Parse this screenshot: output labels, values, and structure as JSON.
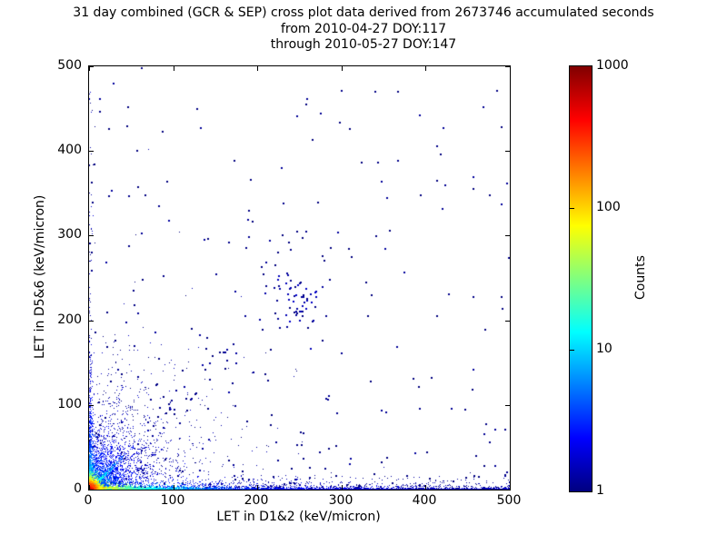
{
  "title": {
    "line1": "31 day combined (GCR & SEP) cross plot data derived from 2673746 accumulated seconds",
    "line2": "from 2010-04-27 DOY:117",
    "line3": "through 2010-05-27 DOY:147"
  },
  "chart_data": {
    "type": "scatter",
    "subtype": "2d-density-histogram",
    "title": "31 day combined (GCR & SEP) cross plot data derived from 2673746 accumulated seconds from 2010-04-27 DOY:117 through 2010-05-27 DOY:147",
    "xlabel": "LET in D1&2 (keV/micron)",
    "ylabel": "LET in D5&6 (keV/micron)",
    "xlim": [
      0,
      500
    ],
    "ylim": [
      0,
      500
    ],
    "xticks": [
      0,
      100,
      200,
      300,
      400,
      500
    ],
    "yticks": [
      0,
      100,
      200,
      300,
      400,
      500
    ],
    "grid": false,
    "legend": "none",
    "colorbar": {
      "label": "Counts",
      "scale": "log",
      "min": 1,
      "max": 1000,
      "ticks": [
        1,
        10,
        100,
        1000
      ],
      "colormap": "jet"
    },
    "stats": {
      "duration_days": 31,
      "sources": "GCR & SEP",
      "accumulated_seconds": 2673746,
      "start_date": "2010-04-27",
      "start_doy": 117,
      "end_date": "2010-05-27",
      "end_doy": 147
    },
    "seed": 20100427,
    "density_components": [
      {
        "name": "sparse-background",
        "type": "power",
        "n": 300,
        "xpow": 1.3,
        "ypow": 3.0,
        "max": 500,
        "size": 2,
        "noise": 0.05,
        "count": {
          "base": 1.05,
          "var": "r",
          "terms": []
        }
      },
      {
        "name": "mid-diagonal-trend",
        "type": "diag",
        "n": 70,
        "u": {
          "dist": "uniform",
          "min": 40,
          "max": 280
        },
        "jitter": 0,
        "jitter_rel": 0.15,
        "size": 2,
        "noise": 0.05,
        "count": {
          "base": 1.1,
          "var": "u",
          "terms": []
        }
      },
      {
        "name": "cluster-250-225",
        "type": "gauss",
        "n": 48,
        "cx": 249,
        "cy": 223,
        "sigma": 16,
        "size": 2,
        "noise": 0.08,
        "count": {
          "base": 1.3,
          "var": "r",
          "terms": []
        }
      },
      {
        "name": "lower-left-fan",
        "type": "polar",
        "n": 2600,
        "r": {
          "dist": "exp",
          "scale": 42
        },
        "theta_deg": [
          2,
          88
        ],
        "size": 1,
        "noise": 0.1,
        "count": {
          "base": 1.15,
          "var": "r",
          "terms": [
            [
              7,
              25
            ]
          ]
        }
      },
      {
        "name": "radial-rays",
        "type": "rays",
        "angles": [
          14,
          22,
          30,
          38,
          52,
          63,
          72,
          80
        ],
        "n_per": 70,
        "r": {
          "dist": "exp",
          "scale": 55
        },
        "perp_sigma": 1.6,
        "size": 1,
        "noise": 0.1,
        "count": {
          "base": 1.1,
          "var": "r",
          "terms": [
            [
              5,
              40
            ]
          ]
        }
      },
      {
        "name": "bottom-speckle",
        "type": "xy",
        "n": 1300,
        "size": 1,
        "noise": 0.08,
        "x": {
          "dist": "mix",
          "parts": [
            {
              "w": 0.5,
              "dist": "exp",
              "scale": 130
            },
            {
              "w": 0.5,
              "dist": "uniform",
              "min": 0,
              "max": 500
            }
          ]
        },
        "y": {
          "dist": "exp",
          "scale": 4.5
        },
        "count": {
          "base": 1.2,
          "var": "x",
          "terms": [
            [
              6,
              60
            ]
          ]
        }
      },
      {
        "name": "left-edge-band",
        "type": "xy",
        "n": 800,
        "size": 1,
        "noise": 0.1,
        "x": {
          "dist": "exp",
          "scale": 1.6
        },
        "y": {
          "dist": "mix",
          "parts": [
            {
              "w": 0.93,
              "dist": "exp",
              "scale": 45
            },
            {
              "w": 0.07,
              "dist": "uniform",
              "min": 0,
              "max": 500
            }
          ]
        },
        "count": {
          "base": 1.3,
          "var": "y",
          "terms": [
            [
              60,
              7
            ],
            [
              8,
              45
            ]
          ]
        }
      },
      {
        "name": "bottom-edge-band",
        "type": "xy",
        "n": 5200,
        "size": 1,
        "noise": 0.1,
        "x": {
          "dist": "mix",
          "parts": [
            {
              "w": 0.62,
              "dist": "exp",
              "scale": 48
            },
            {
              "w": 0.38,
              "dist": "uniform",
              "min": 0,
              "max": 500
            }
          ]
        },
        "y": {
          "dist": "exp",
          "scale": 1.1
        },
        "count": {
          "base": 1.3,
          "var": "x",
          "terms": [
            [
              350,
              10
            ],
            [
              45,
              45
            ],
            [
              5,
              130
            ]
          ]
        }
      },
      {
        "name": "diagonal-streak",
        "type": "diag",
        "n": 420,
        "u": {
          "dist": "exp",
          "scale": 13
        },
        "jitter": 0.9,
        "jitter_rel": 0,
        "size": 1,
        "noise": 0.1,
        "count": {
          "base": 2.0,
          "var": "u",
          "terms": [
            [
              40,
              12
            ]
          ]
        }
      },
      {
        "name": "origin-hotspot",
        "type": "xy",
        "n": 2600,
        "size": 1,
        "noise": 0.08,
        "x": {
          "dist": "exp",
          "scale": 3.5
        },
        "y": {
          "dist": "exp",
          "scale": 3.5
        },
        "count": {
          "base": 1.0,
          "var": "r",
          "terms": [
            [
              900,
              4.5
            ],
            [
              60,
              14
            ],
            [
              4,
              45
            ]
          ]
        }
      },
      {
        "name": "featured-points",
        "type": "points",
        "size": 2,
        "noise": 0.04,
        "count": {
          "base": 1.0,
          "var": "r",
          "terms": []
        },
        "points": [
          [
            46,
            452
          ],
          [
            24,
            426
          ],
          [
            45,
            429
          ],
          [
            88,
            423
          ],
          [
            300,
            471
          ],
          [
            340,
            470
          ],
          [
            367,
            470
          ],
          [
            324,
            386
          ],
          [
            343,
            386
          ],
          [
            93,
            364
          ],
          [
            47,
            347
          ],
          [
            4,
            339
          ],
          [
            6,
            384
          ],
          [
            309,
            284
          ],
          [
            392,
            121
          ],
          [
            230,
            300
          ],
          [
            166,
            292
          ],
          [
            205,
            263
          ]
        ]
      }
    ]
  },
  "colors": {
    "background": "#ffffff",
    "frame": "#000000",
    "text": "#000000",
    "jet_stops": [
      "#000080",
      "#0000ff",
      "#00ffff",
      "#ffff00",
      "#ff0000",
      "#800000"
    ],
    "jet_positions": [
      0,
      12.5,
      37.5,
      62.5,
      87.5,
      100
    ]
  }
}
